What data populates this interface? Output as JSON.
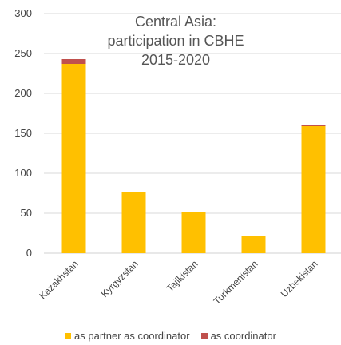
{
  "chart_data": {
    "type": "bar",
    "stacked": true,
    "title": [
      "Central Asia:",
      "participation in CBHE",
      "2015-2020"
    ],
    "categories": [
      "Kazakhstan",
      "Kyrgyzstan",
      "Tajikistan",
      "Turkmenistan",
      "Uzbekistan"
    ],
    "series": [
      {
        "name": "as partner as coordinator",
        "color": "#FFC000",
        "values": [
          237,
          76,
          52,
          22,
          159
        ]
      },
      {
        "name": "as coordinator",
        "color": "#C0504D",
        "values": [
          6,
          1,
          0,
          0,
          1
        ]
      }
    ],
    "ylim": [
      0,
      300
    ],
    "yticks": [
      0,
      50,
      100,
      150,
      200,
      250,
      300
    ],
    "grid": true,
    "legend_position": "bottom"
  }
}
